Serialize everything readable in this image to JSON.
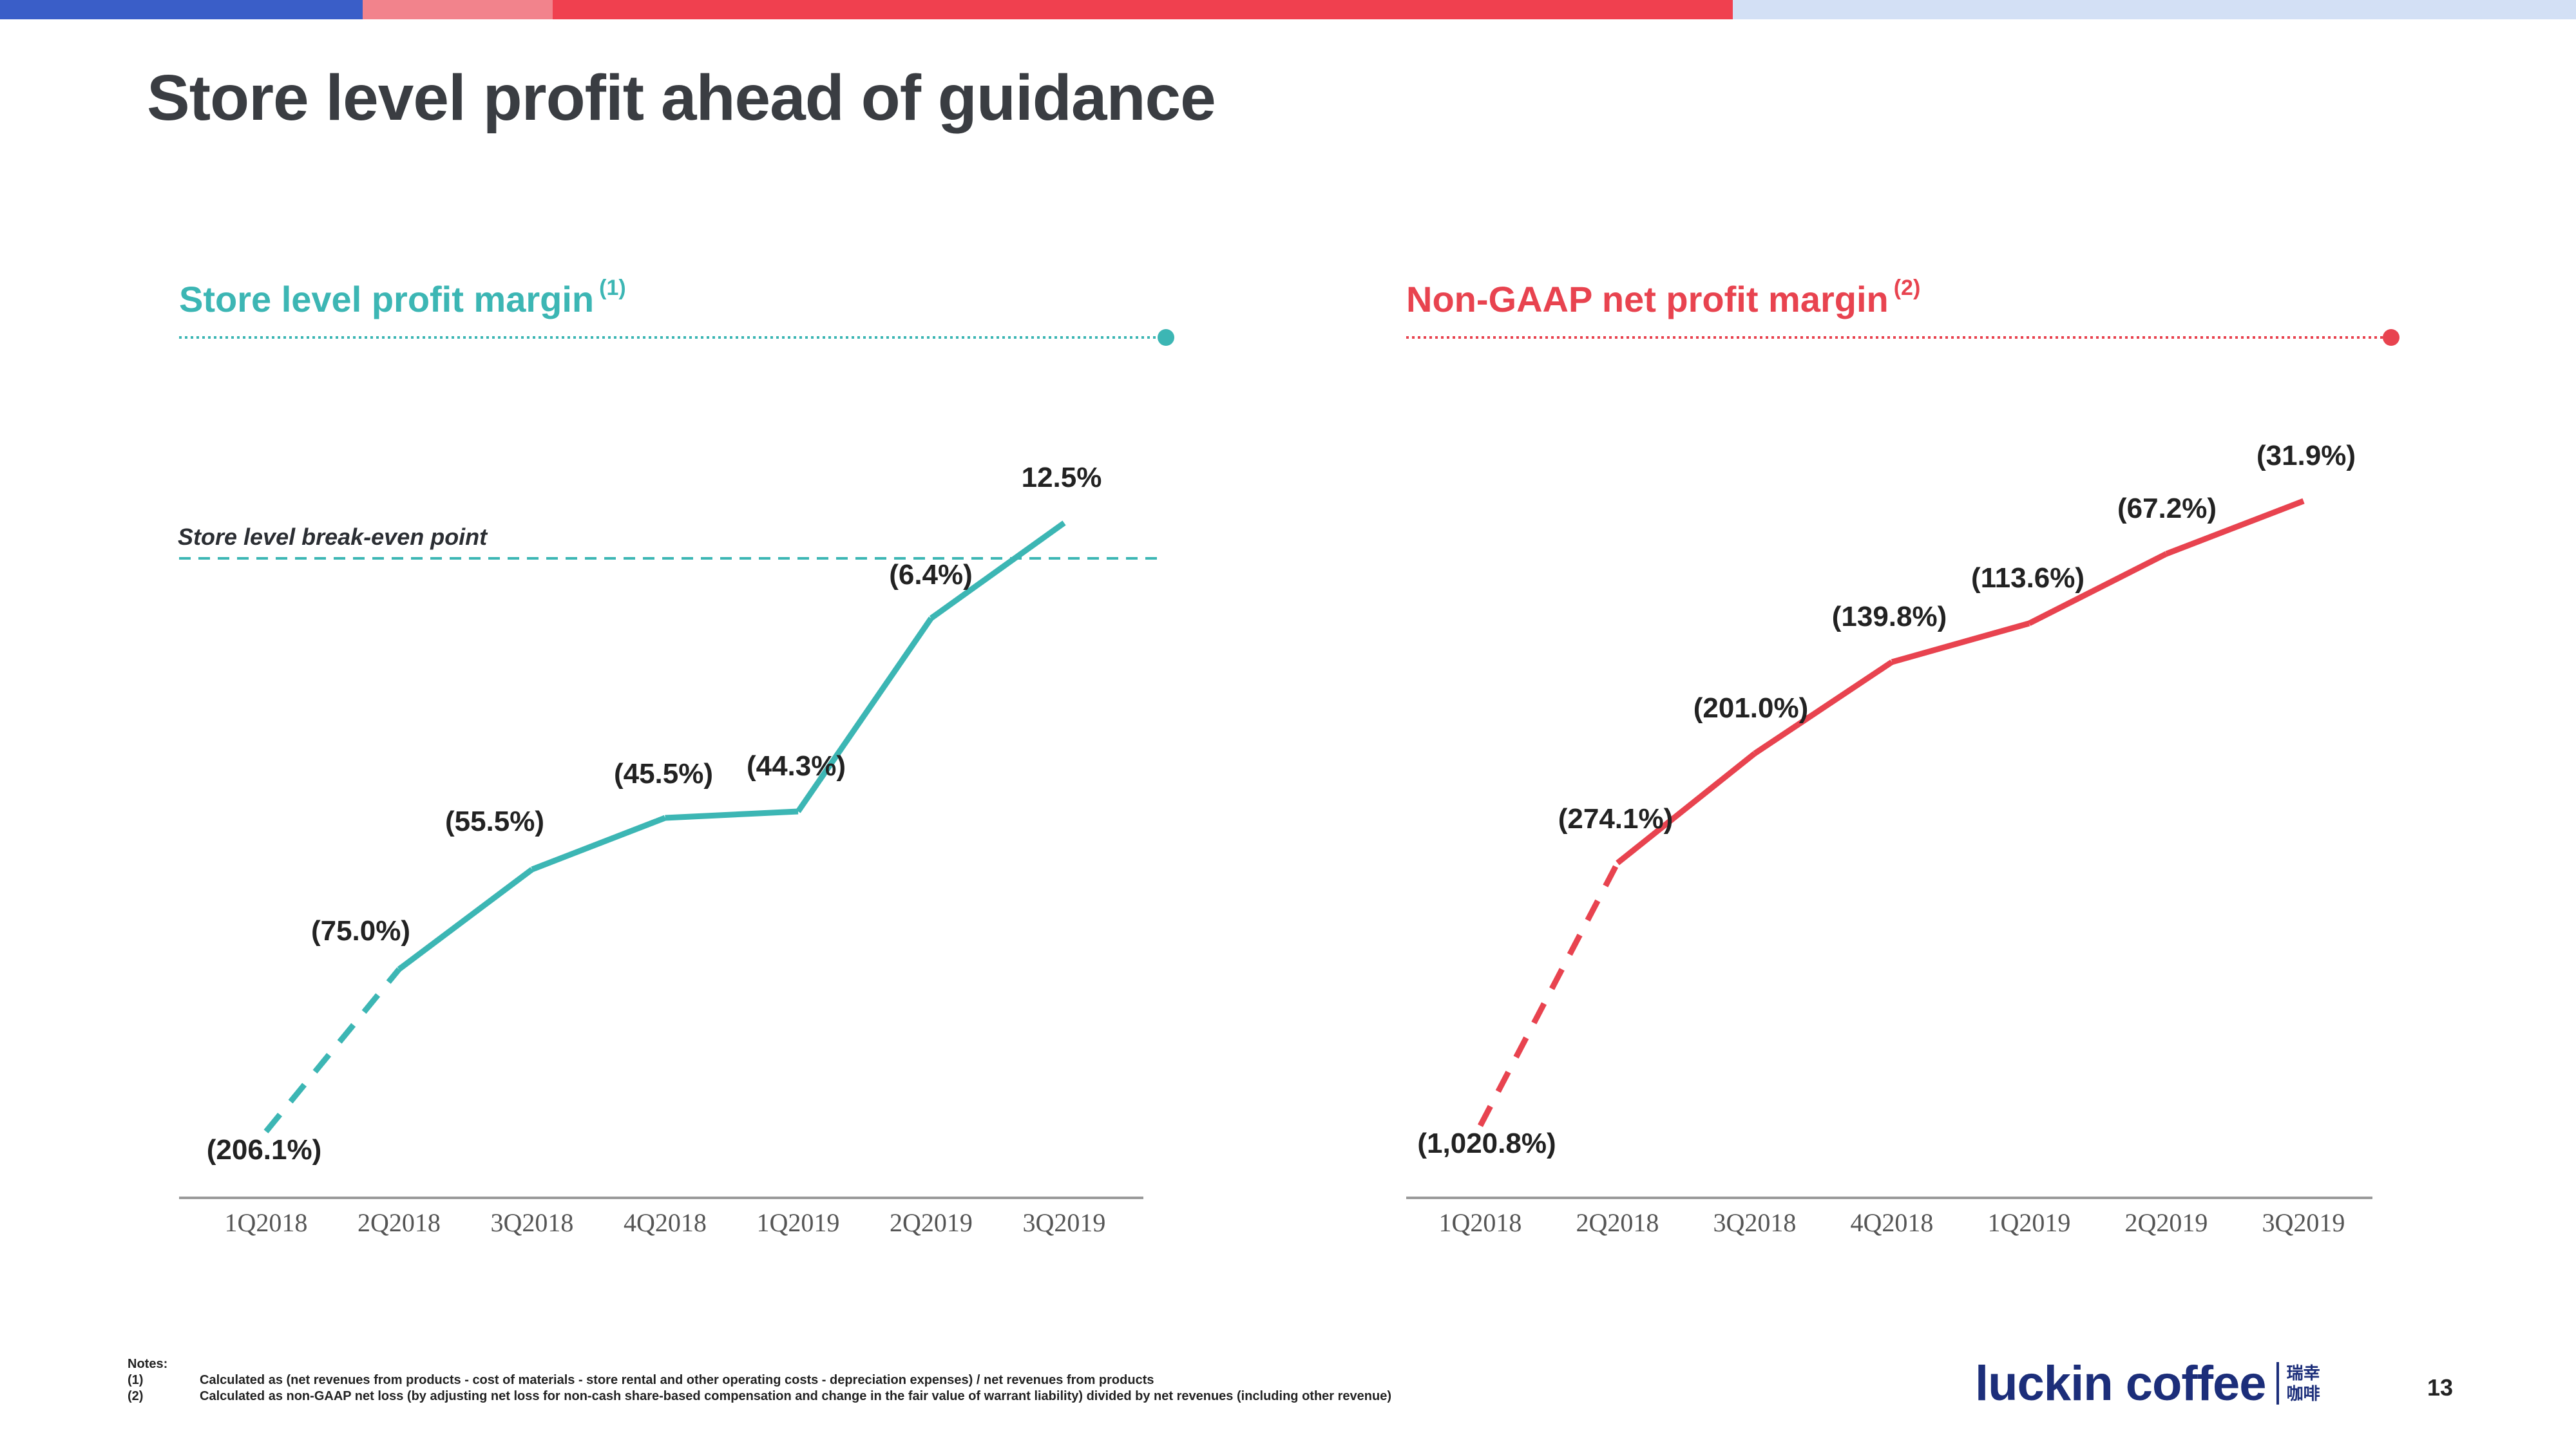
{
  "page": {
    "title": "Store level profit ahead of guidance",
    "page_number": "13"
  },
  "colors": {
    "teal": "#3cb6b4",
    "red": "#e8434f",
    "bar_blue": "#3a5ec8",
    "bar_pink": "#f2838c",
    "bar_red": "#f0404f",
    "bar_light": "#d3e0f5"
  },
  "chart_data": [
    {
      "type": "line",
      "title": "Store level profit margin",
      "title_note": "(1)",
      "categories": [
        "1Q2018",
        "2Q2018",
        "3Q2018",
        "4Q2018",
        "1Q2019",
        "2Q2019",
        "3Q2019"
      ],
      "values": [
        -206.1,
        -75.0,
        -55.5,
        -45.5,
        -44.3,
        -6.4,
        12.5
      ],
      "labels": [
        "(206.1%)",
        "(75.0%)",
        "(55.5%)",
        "(45.5%)",
        "(44.3%)",
        "(6.4%)",
        "12.5%"
      ],
      "dashed_segments": [
        [
          0,
          1
        ]
      ],
      "reference_line": {
        "label": "Store level break-even point",
        "value": 0
      },
      "color": "#3cb6b4"
    },
    {
      "type": "line",
      "title": "Non-GAAP net profit margin",
      "title_note": "(2)",
      "categories": [
        "1Q2018",
        "2Q2018",
        "3Q2018",
        "4Q2018",
        "1Q2019",
        "2Q2019",
        "3Q2019"
      ],
      "values": [
        -1020.8,
        -274.1,
        -201.0,
        -139.8,
        -113.6,
        -67.2,
        -31.9
      ],
      "labels": [
        "(1,020.8%)",
        "(274.1%)",
        "(201.0%)",
        "(139.8%)",
        "(113.6%)",
        "(67.2%)",
        "(31.9%)"
      ],
      "dashed_segments": [
        [
          0,
          1
        ]
      ],
      "color": "#e8434f"
    }
  ],
  "notes": {
    "header": "Notes:",
    "items": [
      {
        "num": "(1)",
        "text": "Calculated as (net revenues from products - cost of materials - store rental and other operating costs - depreciation expenses) / net revenues from products"
      },
      {
        "num": "(2)",
        "text": "Calculated as non-GAAP net loss (by adjusting net loss for non-cash share-based compensation and change in the fair value of warrant liability) divided by net revenues (including other revenue)"
      }
    ]
  },
  "logo": {
    "text": "luckin coffee",
    "cn_line1": "瑞幸",
    "cn_line2": "咖啡"
  }
}
